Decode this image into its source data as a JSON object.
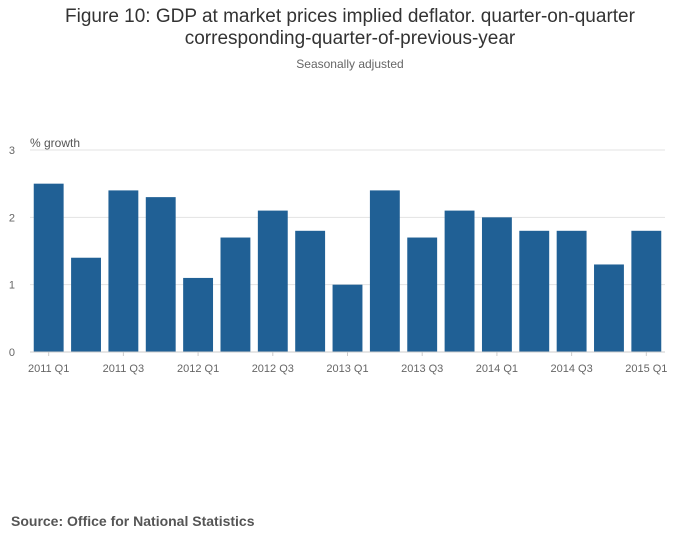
{
  "chart_data": {
    "type": "bar",
    "title_lines": [
      "Figure 10: GDP at market prices implied deflator. quarter-on-quarter",
      "corresponding-quarter-of-previous-year"
    ],
    "subtitle": "Seasonally adjusted",
    "ylabel": "% growth",
    "xlabel": "",
    "ylim": [
      0,
      3
    ],
    "yticks": [
      0,
      1,
      2,
      3
    ],
    "grid": true,
    "legend": "none",
    "bar_color": "#206095",
    "categories": [
      "2011 Q1",
      "2011 Q2",
      "2011 Q3",
      "2011 Q4",
      "2012 Q1",
      "2012 Q2",
      "2012 Q3",
      "2012 Q4",
      "2013 Q1",
      "2013 Q2",
      "2013 Q3",
      "2013 Q4",
      "2014 Q1",
      "2014 Q2",
      "2014 Q3",
      "2014 Q4",
      "2015 Q1"
    ],
    "values": [
      2.5,
      1.4,
      2.4,
      2.3,
      1.1,
      1.7,
      2.1,
      1.8,
      1.0,
      2.4,
      1.7,
      2.1,
      2.0,
      1.8,
      1.8,
      1.3,
      1.8
    ],
    "xtick_labels": [
      "2011 Q1",
      "2011 Q3",
      "2012 Q1",
      "2012 Q3",
      "2013 Q1",
      "2013 Q3",
      "2014 Q1",
      "2014 Q3",
      "2015 Q1"
    ]
  },
  "footer": {
    "source": "Source: Office for National Statistics"
  }
}
